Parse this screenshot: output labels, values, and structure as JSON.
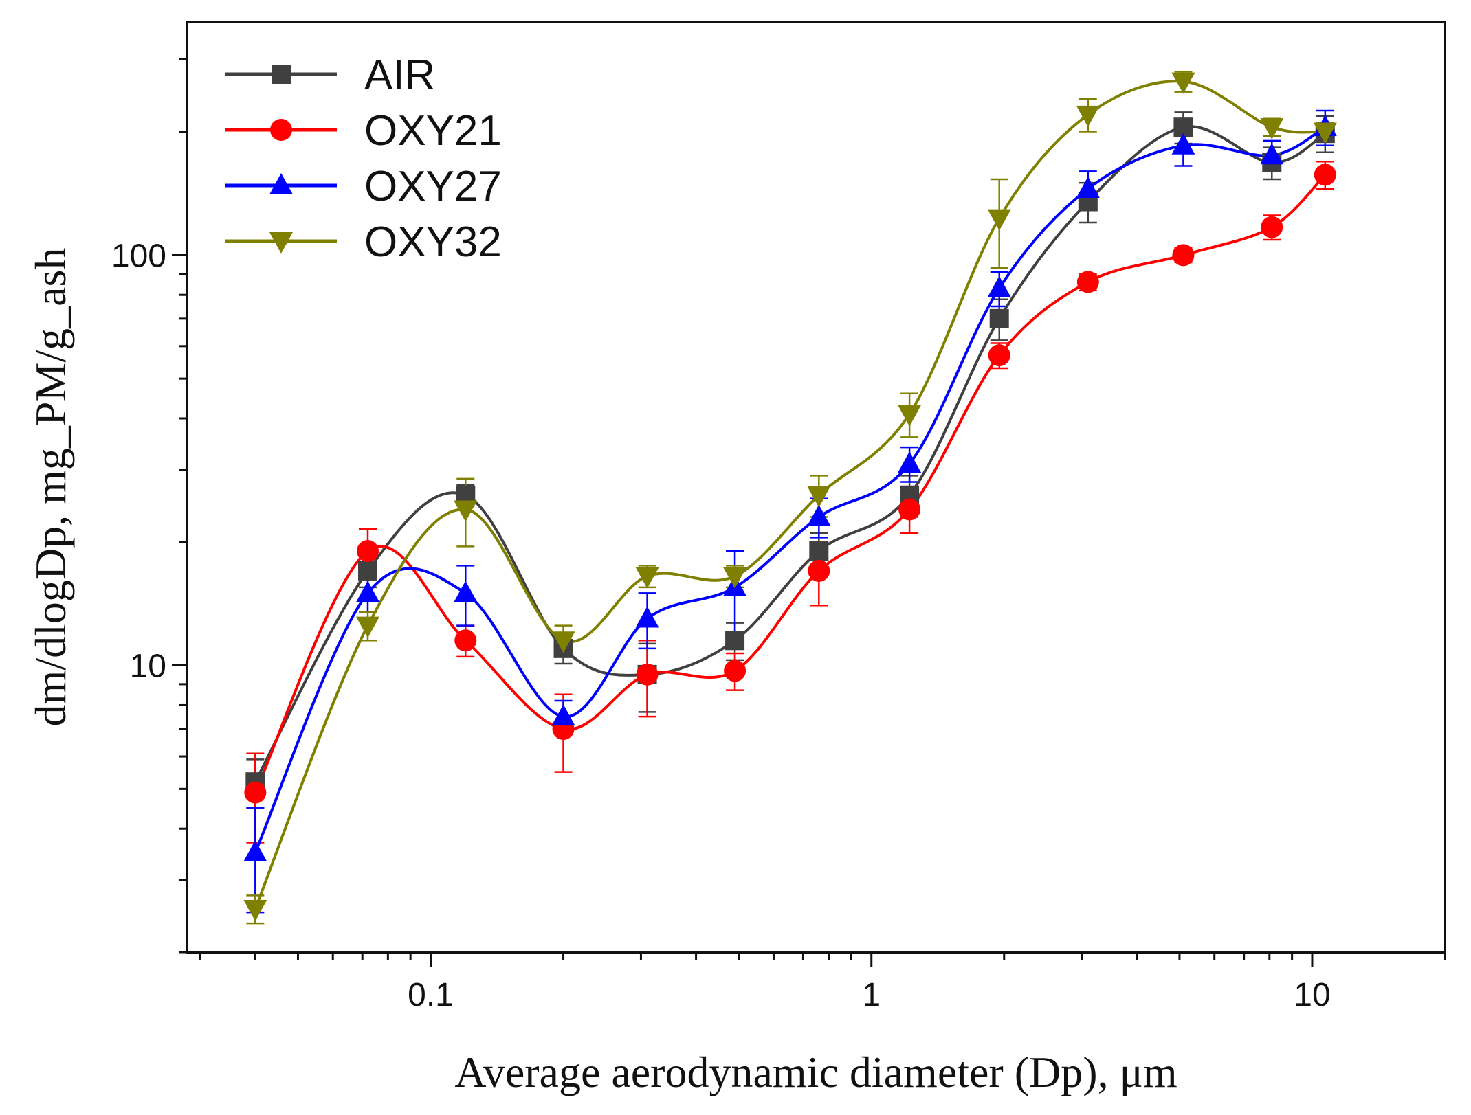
{
  "chart_data": {
    "type": "line",
    "title": "",
    "xlabel": "Average aerodynamic diameter (Dp), μm",
    "ylabel": "dm/dlogDp, mg_PM/g_ash",
    "xscale": "log",
    "yscale": "log",
    "xlim": [
      0.028,
      20
    ],
    "ylim": [
      2.0,
      370
    ],
    "x_ticks": [
      0.1,
      1,
      10
    ],
    "x_tick_labels": [
      "0.1",
      "1",
      "10"
    ],
    "y_ticks": [
      10,
      100
    ],
    "y_tick_labels": [
      "10",
      "100"
    ],
    "legend_position": "top-left",
    "grid": false,
    "x": [
      0.04,
      0.072,
      0.12,
      0.2,
      0.31,
      0.49,
      0.76,
      1.22,
      1.95,
      3.1,
      5.1,
      8.1,
      10.7
    ],
    "series": [
      {
        "name": "AIR",
        "color": "#404040",
        "marker": "square",
        "values": [
          5.2,
          17,
          26,
          11,
          9.5,
          11.5,
          19,
          26,
          70,
          135,
          205,
          168,
          198
        ],
        "errors": [
          0.7,
          1.5,
          1.5,
          0.9,
          1.8,
          1.2,
          2.0,
          3.0,
          8.0,
          15,
          18,
          15,
          20
        ]
      },
      {
        "name": "OXY21",
        "color": "#ff0000",
        "marker": "circle",
        "values": [
          4.9,
          19,
          11.5,
          7.0,
          9.5,
          9.7,
          17,
          24,
          57,
          86,
          100,
          117,
          157
        ],
        "errors": [
          1.2,
          2.5,
          1.0,
          1.5,
          2.0,
          1.0,
          3.0,
          3.0,
          4.0,
          4.0,
          4.0,
          8.0,
          12
        ]
      },
      {
        "name": "OXY27",
        "color": "#0000ff",
        "marker": "triangle-up",
        "values": [
          3.5,
          15,
          15,
          7.5,
          13,
          15.5,
          23,
          31,
          83,
          145,
          185,
          175,
          205
        ],
        "errors": [
          1.0,
          1.5,
          2.5,
          0.7,
          2.0,
          3.5,
          2.5,
          3.0,
          8.0,
          15,
          20,
          15,
          20
        ]
      },
      {
        "name": "OXY32",
        "color": "#808000",
        "marker": "triangle-down",
        "values": [
          2.55,
          12.5,
          24,
          11.5,
          16.5,
          16.5,
          26,
          41,
          123,
          220,
          265,
          205,
          200
        ],
        "errors": [
          0.2,
          1.0,
          4.5,
          1.0,
          1.0,
          1.0,
          3.0,
          5.0,
          30,
          20,
          15,
          10,
          10
        ]
      }
    ]
  }
}
